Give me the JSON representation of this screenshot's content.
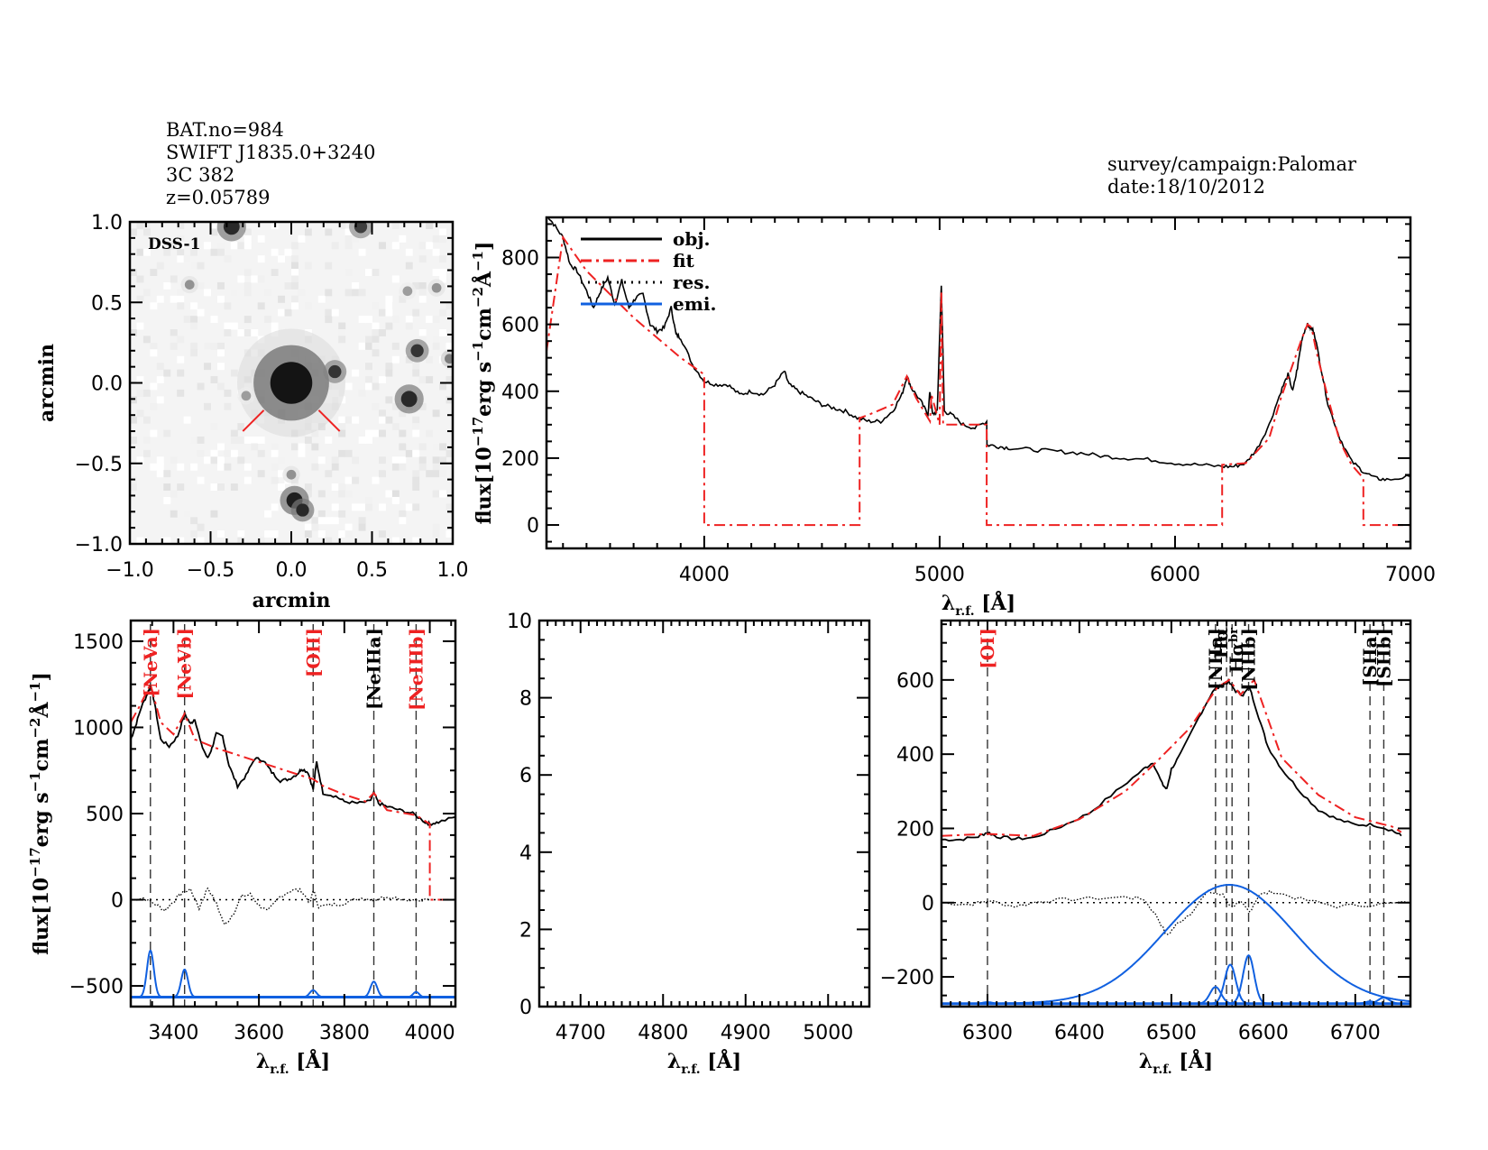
{
  "header": {
    "left_lines": [
      "BAT.no=984",
      "SWIFT J1835.0+3240",
      "3C 382",
      "z=0.05789"
    ],
    "right_lines": [
      "survey/campaign:Palomar",
      "date:18/10/2012"
    ]
  },
  "colors": {
    "obj": "#000000",
    "fit": "#ee2222",
    "res": "#000000",
    "emi": "#1060e0",
    "line_marker_black": "#000000",
    "line_marker_red": "#ee2222"
  },
  "chart_data": [
    {
      "id": "image",
      "type": "heatmap",
      "title": "DSS-1",
      "xlabel": "arcmin",
      "ylabel": "arcmin",
      "xlim": [
        -1.0,
        1.0
      ],
      "ylim": [
        -1.0,
        1.0
      ],
      "xticks": [
        "-1.0",
        "-0.5",
        "0.0",
        "0.5",
        "1.0"
      ],
      "yticks": [
        "-1.0",
        "-0.5",
        "0.0",
        "0.5",
        "1.0"
      ],
      "sources": [
        {
          "x": 0.0,
          "y": 0.0,
          "size": 0.13,
          "intensity": 1.0
        },
        {
          "x": -0.37,
          "y": 0.97,
          "size": 0.05,
          "intensity": 0.9
        },
        {
          "x": 0.43,
          "y": 0.97,
          "size": 0.04,
          "intensity": 0.8
        },
        {
          "x": 0.27,
          "y": 0.07,
          "size": 0.04,
          "intensity": 0.85
        },
        {
          "x": 0.78,
          "y": 0.2,
          "size": 0.04,
          "intensity": 0.85
        },
        {
          "x": 0.73,
          "y": -0.1,
          "size": 0.05,
          "intensity": 0.9
        },
        {
          "x": 0.02,
          "y": -0.73,
          "size": 0.05,
          "intensity": 0.95
        },
        {
          "x": 0.07,
          "y": -0.79,
          "size": 0.04,
          "intensity": 0.9
        },
        {
          "x": -0.63,
          "y": 0.61,
          "size": 0.03,
          "intensity": 0.4
        },
        {
          "x": 0.72,
          "y": 0.57,
          "size": 0.03,
          "intensity": 0.35
        },
        {
          "x": 0.9,
          "y": 0.59,
          "size": 0.03,
          "intensity": 0.4
        },
        {
          "x": 0.98,
          "y": 0.15,
          "size": 0.03,
          "intensity": 0.5
        },
        {
          "x": -0.28,
          "y": -0.08,
          "size": 0.03,
          "intensity": 0.35
        },
        {
          "x": 0.0,
          "y": -0.57,
          "size": 0.03,
          "intensity": 0.4
        }
      ],
      "markers": [
        {
          "x1": -0.3,
          "y1": -0.3,
          "x2": -0.17,
          "y2": -0.17
        },
        {
          "x1": 0.17,
          "y1": -0.17,
          "x2": 0.3,
          "y2": -0.3
        }
      ]
    },
    {
      "id": "full",
      "type": "line",
      "xlabel": "λ_r.f. [Å]",
      "ylabel": "flux[10^-17 erg s^-1 cm^-2 Å^-1]",
      "xlim": [
        3330,
        7000
      ],
      "ylim": [
        -70,
        920
      ],
      "xticks": [
        4000,
        5000,
        6000,
        7000
      ],
      "yticks": [
        0,
        200,
        400,
        600,
        800
      ],
      "legend": {
        "position": "top-left",
        "entries": [
          {
            "label": "obj.",
            "style": "solid",
            "color": "#000000"
          },
          {
            "label": "fit",
            "style": "dashdot",
            "color": "#ee2222"
          },
          {
            "label": "res.",
            "style": "dotted",
            "color": "#000000"
          },
          {
            "label": "emi.",
            "style": "solid",
            "color": "#1060e0"
          }
        ]
      },
      "series": [
        {
          "name": "obj.",
          "x": [
            3330,
            3360,
            3400,
            3430,
            3460,
            3500,
            3530,
            3560,
            3590,
            3620,
            3650,
            3680,
            3710,
            3740,
            3770,
            3800,
            3830,
            3860,
            3880,
            3900,
            3950,
            4000,
            4050,
            4100,
            4150,
            4200,
            4250,
            4300,
            4340,
            4360,
            4400,
            4450,
            4500,
            4550,
            4600,
            4650,
            4700,
            4750,
            4800,
            4840,
            4861,
            4880,
            4920,
            4950,
            4959,
            4970,
            4990,
            5007,
            5020,
            5050,
            5100,
            5150,
            5200,
            5201,
            5250,
            5300,
            5400,
            5500,
            5600,
            5700,
            5800,
            5900,
            6000,
            6100,
            6200,
            6250,
            6300,
            6350,
            6400,
            6450,
            6480,
            6500,
            6520,
            6540,
            6560,
            6575,
            6590,
            6620,
            6650,
            6700,
            6750,
            6800,
            6850,
            6900,
            7000
          ],
          "y": [
            930,
            900,
            860,
            780,
            760,
            700,
            650,
            700,
            740,
            660,
            730,
            650,
            680,
            690,
            600,
            580,
            590,
            650,
            570,
            560,
            480,
            430,
            420,
            420,
            390,
            400,
            390,
            420,
            460,
            420,
            400,
            380,
            360,
            350,
            340,
            320,
            310,
            310,
            340,
            390,
            445,
            410,
            370,
            330,
            400,
            330,
            340,
            720,
            340,
            330,
            300,
            290,
            310,
            240,
            235,
            230,
            225,
            220,
            215,
            205,
            200,
            195,
            185,
            180,
            175,
            175,
            185,
            230,
            300,
            400,
            450,
            400,
            470,
            560,
            600,
            590,
            580,
            470,
            360,
            260,
            190,
            160,
            140,
            135,
            145
          ]
        },
        {
          "name": "fit",
          "x": [
            3330,
            3400,
            3500,
            3600,
            3700,
            3800,
            3900,
            4000,
            4000,
            4660,
            4660,
            4700,
            4800,
            4861,
            4900,
            4959,
            4965,
            5000,
            5007,
            5015,
            5050,
            5100,
            5200,
            5200,
            6200,
            6200,
            6300,
            6400,
            6450,
            6500,
            6540,
            6563,
            6580,
            6600,
            6650,
            6700,
            6750,
            6800,
            6800,
            7000
          ],
          "y": [
            520,
            860,
            760,
            690,
            620,
            560,
            500,
            450,
            0,
            0,
            320,
            330,
            360,
            445,
            380,
            310,
            390,
            300,
            700,
            300,
            300,
            300,
            300,
            0,
            0,
            180,
            185,
            260,
            380,
            480,
            560,
            600,
            590,
            520,
            380,
            250,
            180,
            140,
            0,
            0
          ]
        },
        {
          "name": "emi.",
          "x": [],
          "y": []
        }
      ]
    },
    {
      "id": "blue_zoom",
      "type": "line",
      "xlabel": "λ_r.f. [Å]",
      "ylabel": "flux[10^-17 erg s^-1 cm^-2 Å^-1]",
      "xlim": [
        3300,
        4060
      ],
      "ylim": [
        -620,
        1620
      ],
      "xticks": [
        3400,
        3600,
        3800,
        4000
      ],
      "yticks": [
        -500,
        0,
        500,
        1000,
        1500
      ],
      "lines": [
        {
          "label": "[NeVa]",
          "x": 3346,
          "color": "#ee2222"
        },
        {
          "label": "[NeVb]",
          "x": 3426,
          "color": "#ee2222"
        },
        {
          "label": "[OII]",
          "x": 3727,
          "color": "#ee2222"
        },
        {
          "label": "[NeIIIa]",
          "x": 3869,
          "color": "#000000"
        },
        {
          "label": "[NeIIIb]",
          "x": 3968,
          "color": "#ee2222"
        }
      ],
      "series": [
        {
          "name": "obj.",
          "x": [
            3300,
            3310,
            3325,
            3340,
            3346,
            3355,
            3370,
            3390,
            3410,
            3426,
            3440,
            3450,
            3465,
            3480,
            3490,
            3500,
            3515,
            3530,
            3550,
            3570,
            3590,
            3610,
            3630,
            3650,
            3670,
            3690,
            3700,
            3715,
            3727,
            3735,
            3750,
            3780,
            3800,
            3830,
            3860,
            3869,
            3880,
            3900,
            3930,
            3960,
            3990,
            4000,
            4020,
            4060
          ],
          "y": [
            930,
            1000,
            1120,
            1200,
            1250,
            1150,
            930,
            890,
            950,
            1080,
            1020,
            1050,
            900,
            820,
            880,
            960,
            950,
            780,
            660,
            720,
            820,
            810,
            740,
            690,
            700,
            730,
            760,
            740,
            640,
            800,
            620,
            600,
            570,
            560,
            570,
            620,
            560,
            540,
            520,
            500,
            450,
            440,
            450,
            480
          ]
        },
        {
          "name": "fit",
          "x": [
            3300,
            3320,
            3346,
            3370,
            3400,
            3426,
            3450,
            3500,
            3600,
            3700,
            3727,
            3750,
            3800,
            3850,
            3869,
            3900,
            3968,
            4000,
            4000,
            4060
          ],
          "y": [
            1030,
            1120,
            1250,
            1030,
            960,
            1080,
            930,
            880,
            800,
            720,
            700,
            660,
            610,
            570,
            620,
            520,
            490,
            440,
            0,
            0
          ]
        },
        {
          "name": "res.",
          "x": [
            3300,
            3330,
            3360,
            3380,
            3400,
            3420,
            3440,
            3460,
            3480,
            3500,
            3520,
            3540,
            3560,
            3580,
            3600,
            3620,
            3650,
            3680,
            3700,
            3720,
            3727,
            3740,
            3770,
            3800,
            3840,
            3870,
            3900,
            3950,
            4000
          ],
          "y": [
            0,
            10,
            -30,
            -60,
            -10,
            40,
            60,
            -50,
            70,
            -20,
            -150,
            -80,
            20,
            30,
            -30,
            -70,
            20,
            60,
            50,
            -20,
            60,
            -40,
            -30,
            -20,
            10,
            0,
            20,
            0,
            0
          ]
        },
        {
          "name": "emi.",
          "baseline": -565,
          "peaks": [
            {
              "x": 3346,
              "amp": 270,
              "sigma": 8
            },
            {
              "x": 3426,
              "amp": 160,
              "sigma": 8
            },
            {
              "x": 3727,
              "amp": 40,
              "sigma": 8
            },
            {
              "x": 3869,
              "amp": 90,
              "sigma": 8
            },
            {
              "x": 3968,
              "amp": 30,
              "sigma": 7
            }
          ]
        }
      ]
    },
    {
      "id": "hbeta_zoom",
      "type": "line",
      "xlabel": "λ_r.f. [Å]",
      "ylabel": "",
      "xlim": [
        4650,
        5050
      ],
      "ylim": [
        0,
        10
      ],
      "xticks": [
        4700,
        4800,
        4900,
        5000
      ],
      "yticks": [
        0,
        2,
        4,
        6,
        8,
        10
      ],
      "series": []
    },
    {
      "id": "halpha_zoom",
      "type": "line",
      "xlabel": "λ_r.f. [Å]",
      "ylabel": "",
      "xlim": [
        6250,
        6760
      ],
      "ylim": [
        -280,
        760
      ],
      "xticks": [
        6300,
        6400,
        6500,
        6600,
        6700
      ],
      "yticks": [
        -200,
        0,
        200,
        400,
        600
      ],
      "lines": [
        {
          "label": "[OI]",
          "x": 6300,
          "color": "#ee2222"
        },
        {
          "label": "[NIIa]",
          "x": 6548,
          "color": "#000000"
        },
        {
          "label": "Hα",
          "x": 6560,
          "color": "#000000"
        },
        {
          "label": "Hα_br",
          "x": 6566,
          "color": "#000000"
        },
        {
          "label": "[NIIb]",
          "x": 6584,
          "color": "#000000"
        },
        {
          "label": "[SIIa]",
          "x": 6716,
          "color": "#000000"
        },
        {
          "label": "[SIIb]",
          "x": 6731,
          "color": "#000000"
        }
      ],
      "series": [
        {
          "name": "obj.",
          "x": [
            6250,
            6270,
            6290,
            6300,
            6310,
            6330,
            6350,
            6380,
            6410,
            6440,
            6470,
            6480,
            6490,
            6495,
            6500,
            6510,
            6530,
            6545,
            6555,
            6562,
            6570,
            6578,
            6585,
            6595,
            6605,
            6620,
            6640,
            6660,
            6680,
            6700,
            6720,
            6740,
            6750
          ],
          "y": [
            170,
            170,
            178,
            190,
            178,
            172,
            175,
            205,
            240,
            300,
            360,
            378,
            320,
            305,
            360,
            400,
            500,
            570,
            585,
            595,
            570,
            560,
            580,
            500,
            420,
            360,
            300,
            250,
            225,
            210,
            210,
            195,
            180
          ]
        },
        {
          "name": "fit",
          "x": [
            6250,
            6300,
            6350,
            6400,
            6450,
            6480,
            6520,
            6550,
            6563,
            6575,
            6590,
            6600,
            6620,
            6660,
            6700,
            6740,
            6750
          ],
          "y": [
            180,
            185,
            180,
            225,
            300,
            370,
            470,
            580,
            600,
            560,
            600,
            530,
            390,
            290,
            230,
            205,
            190
          ]
        },
        {
          "name": "res.",
          "x": [
            6250,
            6280,
            6300,
            6330,
            6360,
            6400,
            6450,
            6470,
            6485,
            6495,
            6505,
            6520,
            6540,
            6556,
            6565,
            6575,
            6585,
            6595,
            6610,
            6640,
            6680,
            6720,
            6760
          ],
          "y": [
            0,
            -5,
            5,
            -10,
            5,
            10,
            15,
            10,
            -40,
            -90,
            -60,
            -30,
            30,
            20,
            -10,
            0,
            -25,
            20,
            30,
            10,
            -10,
            -5,
            0
          ]
        },
        {
          "name": "emi.",
          "baseline": -272,
          "peaks": [
            {
              "x": 6300,
              "amp": 4,
              "sigma": 5
            },
            {
              "x": 6548,
              "amp": 45,
              "sigma": 6
            },
            {
              "x": 6563,
              "amp": 320,
              "sigma": 70
            },
            {
              "x": 6564,
              "amp": 105,
              "sigma": 6
            },
            {
              "x": 6584,
              "amp": 130,
              "sigma": 6
            },
            {
              "x": 6716,
              "amp": 6,
              "sigma": 5
            },
            {
              "x": 6731,
              "amp": 16,
              "sigma": 6
            }
          ]
        }
      ]
    }
  ]
}
